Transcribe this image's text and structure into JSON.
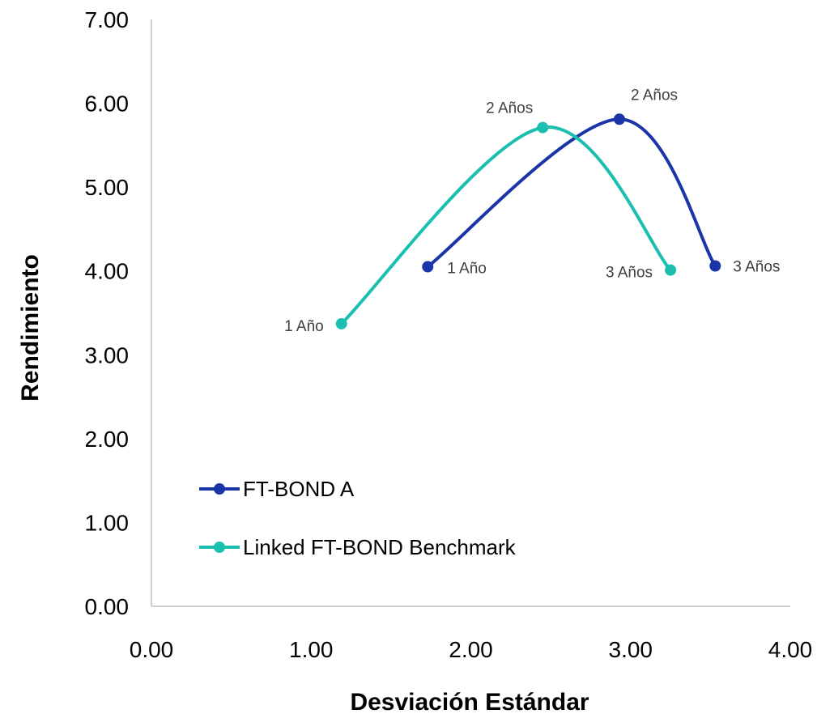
{
  "chart_data": {
    "type": "line",
    "xlabel": "Desviación Estándar",
    "ylabel": "Rendimiento",
    "xlim": [
      0,
      4
    ],
    "ylim": [
      0,
      7
    ],
    "x_ticks": [
      "0.00",
      "1.00",
      "2.00",
      "3.00",
      "4.00"
    ],
    "y_ticks": [
      "0.00",
      "1.00",
      "2.00",
      "3.00",
      "4.00",
      "5.00",
      "6.00",
      "7.00"
    ],
    "grid": false,
    "smooth": true,
    "legend_position": "lower-left",
    "series": [
      {
        "name": "FT-BOND A",
        "color": "#1a35a8",
        "points": [
          {
            "x": 1.73,
            "y": 4.05,
            "label": "1 Año"
          },
          {
            "x": 2.93,
            "y": 5.81,
            "label": "2 Años"
          },
          {
            "x": 3.53,
            "y": 4.06,
            "label": "3 Años"
          }
        ]
      },
      {
        "name": "Linked FT-BOND Benchmark",
        "color": "#1bbfb0",
        "points": [
          {
            "x": 1.19,
            "y": 3.37,
            "label": "1 Año"
          },
          {
            "x": 2.45,
            "y": 5.71,
            "label": "2 Años"
          },
          {
            "x": 3.25,
            "y": 4.01,
            "label": "3 Años"
          }
        ]
      }
    ]
  }
}
